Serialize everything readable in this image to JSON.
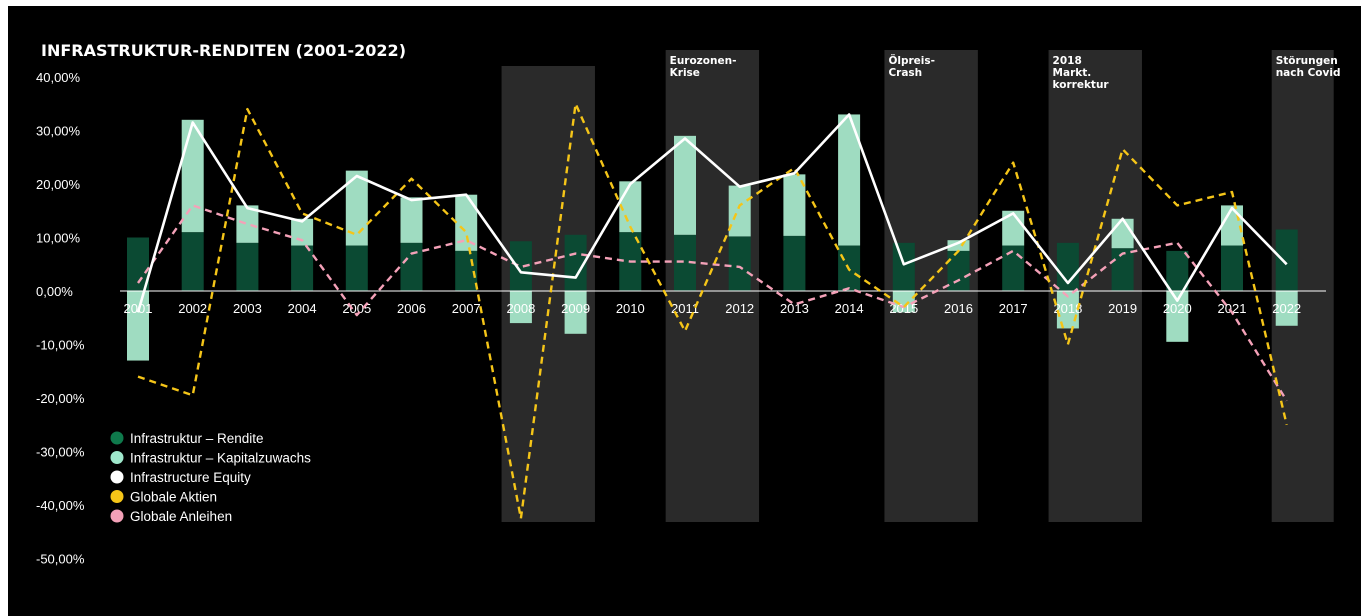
{
  "chart_data": {
    "type": "bar",
    "title": "INFRASTRUKTUR-RENDITEN (2001-2022)",
    "categories": [
      "2001",
      "2002",
      "2003",
      "2004",
      "2005",
      "2006",
      "2007",
      "2008",
      "2009",
      "2010",
      "2011",
      "2012",
      "2013",
      "2014",
      "2015",
      "2016",
      "2017",
      "2018",
      "2019",
      "2020",
      "2021",
      "2022"
    ],
    "ylim": [
      -50,
      40
    ],
    "yticks": [
      {
        "value": 40,
        "label": "40,00%"
      },
      {
        "value": 30,
        "label": "30,00%"
      },
      {
        "value": 20,
        "label": "20,00%"
      },
      {
        "value": 10,
        "label": "10,00%"
      },
      {
        "value": 0,
        "label": "0,00%"
      },
      {
        "value": -10,
        "label": "-10,00%"
      },
      {
        "value": -20,
        "label": "-20,00%"
      },
      {
        "value": -30,
        "label": "-30,00%"
      },
      {
        "value": -40,
        "label": "-40,00%"
      },
      {
        "value": -50,
        "label": "-50,00%"
      }
    ],
    "series": [
      {
        "name": "Infrastruktur – Rendite",
        "kind": "bar",
        "color": "#0b4a33",
        "values": [
          10,
          11,
          9,
          8.5,
          8.5,
          9,
          7.5,
          9.3,
          10.5,
          11,
          10.5,
          10.2,
          10.3,
          8.5,
          9,
          7.5,
          8.5,
          9,
          8,
          7.5,
          8.5,
          11.5
        ]
      },
      {
        "name": "Infrastruktur – Kapitalzuwachs",
        "kind": "bar",
        "color": "#9fdcc1",
        "values": [
          -13,
          21,
          7,
          5,
          14,
          8.5,
          10.5,
          -6,
          -8,
          9.5,
          18.5,
          9.5,
          11.5,
          24.5,
          -4,
          2,
          6.5,
          -7,
          5.5,
          -9.5,
          7.5,
          -6.5
        ]
      },
      {
        "name": "Infrastructure Equity",
        "kind": "line",
        "color": "#ffffff",
        "values": [
          -4,
          31.5,
          15.5,
          13,
          21.5,
          17,
          18,
          3.5,
          2.5,
          20,
          28.5,
          19.5,
          22,
          33,
          5,
          9,
          14.5,
          1.5,
          13.5,
          -1.8,
          15.5,
          5
        ]
      },
      {
        "name": "Globale Aktien",
        "kind": "line",
        "color": "#f5c518",
        "dash": "dashed",
        "values": [
          -16,
          -19.5,
          34,
          14.5,
          10.5,
          21,
          11,
          -42.5,
          35,
          12,
          -7.5,
          16,
          23,
          4,
          -3,
          7.5,
          24,
          -10,
          26.5,
          16,
          18.5,
          -25
        ]
      },
      {
        "name": "Globale Anleihen",
        "kind": "line",
        "color": "#f4a1b8",
        "dash": "dashed",
        "values": [
          1.5,
          16,
          12.5,
          9.5,
          -4.5,
          7,
          9.5,
          4.5,
          7,
          5.5,
          5.5,
          4.5,
          -2.5,
          0.5,
          -3,
          2,
          7.5,
          -1,
          7,
          9,
          -4,
          -20.5
        ]
      }
    ],
    "bands": [
      {
        "years": [
          "2008",
          "2009"
        ],
        "label": []
      },
      {
        "years": [
          "2011",
          "2012"
        ],
        "label": [
          "Eurozonen-",
          "Krise"
        ]
      },
      {
        "years": [
          "2015",
          "2016"
        ],
        "label": [
          "Ölpreis-",
          "Crash"
        ]
      },
      {
        "years": [
          "2018",
          "2019"
        ],
        "label": [
          "2018",
          "Markt.",
          "korrektur"
        ]
      },
      {
        "years": [
          "2022",
          "2022"
        ],
        "label": [
          "Störungen",
          "nach Covid"
        ]
      }
    ],
    "legend": {
      "position": "bottom-left",
      "items": [
        {
          "label": "Infrastruktur – Rendite",
          "color": "#0f7a4c"
        },
        {
          "label": "Infrastruktur – Kapitalzuwachs",
          "color": "#9fe8cc"
        },
        {
          "label": "Infrastructure Equity",
          "color": "#ffffff"
        },
        {
          "label": "Globale Aktien",
          "color": "#f5c518"
        },
        {
          "label": "Globale Anleihen",
          "color": "#f4a1b8"
        }
      ]
    }
  }
}
